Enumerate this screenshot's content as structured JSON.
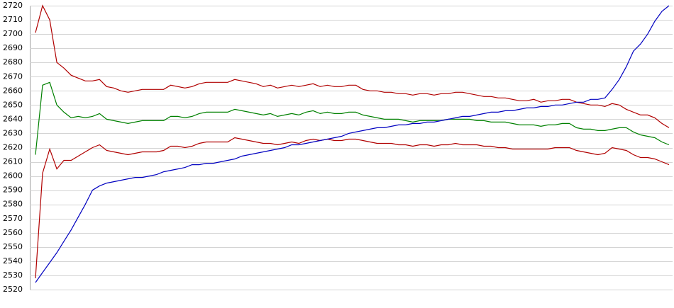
{
  "chart_data": {
    "type": "line",
    "ylim": [
      2520,
      2720
    ],
    "yticks": [
      2520,
      2530,
      2540,
      2550,
      2560,
      2570,
      2580,
      2590,
      2600,
      2610,
      2620,
      2630,
      2640,
      2650,
      2660,
      2670,
      2680,
      2690,
      2700,
      2710,
      2720
    ],
    "grid": true,
    "series": [
      {
        "color": "#b00000",
        "values": [
          2701,
          2720,
          2710,
          2680,
          2676,
          2671,
          2669,
          2667,
          2667,
          2668,
          2663,
          2662,
          2660,
          2659,
          2660,
          2661,
          2661,
          2661,
          2661,
          2664,
          2663,
          2662,
          2663,
          2665,
          2666,
          2666,
          2666,
          2666,
          2668,
          2667,
          2666,
          2665,
          2663,
          2664,
          2662,
          2663,
          2664,
          2663,
          2664,
          2665,
          2663,
          2664,
          2663,
          2663,
          2664,
          2664,
          2661,
          2660,
          2660,
          2659,
          2659,
          2658,
          2658,
          2657,
          2658,
          2658,
          2657,
          2658,
          2658,
          2659,
          2659,
          2658,
          2657,
          2656,
          2656,
          2655,
          2655,
          2654,
          2653,
          2653,
          2654,
          2652,
          2653,
          2653,
          2654,
          2654,
          2652,
          2651,
          2650,
          2650,
          2649,
          2651,
          2650,
          2647,
          2645,
          2643,
          2643,
          2641,
          2637,
          2634
        ]
      },
      {
        "color": "#008000",
        "values": [
          2615,
          2664,
          2666,
          2650,
          2645,
          2641,
          2642,
          2641,
          2642,
          2644,
          2640,
          2639,
          2638,
          2637,
          2638,
          2639,
          2639,
          2639,
          2639,
          2642,
          2642,
          2641,
          2642,
          2644,
          2645,
          2645,
          2645,
          2645,
          2647,
          2646,
          2645,
          2644,
          2643,
          2644,
          2642,
          2643,
          2644,
          2643,
          2645,
          2646,
          2644,
          2645,
          2644,
          2644,
          2645,
          2645,
          2643,
          2642,
          2641,
          2640,
          2640,
          2640,
          2639,
          2638,
          2639,
          2639,
          2639,
          2639,
          2640,
          2640,
          2640,
          2640,
          2639,
          2639,
          2638,
          2638,
          2638,
          2637,
          2636,
          2636,
          2636,
          2635,
          2636,
          2636,
          2637,
          2637,
          2634,
          2633,
          2633,
          2632,
          2632,
          2633,
          2634,
          2634,
          2631,
          2629,
          2628,
          2627,
          2624,
          2622
        ]
      },
      {
        "color": "#b00000",
        "values": [
          2528,
          2602,
          2619,
          2605,
          2611,
          2611,
          2614,
          2617,
          2620,
          2622,
          2618,
          2617,
          2616,
          2615,
          2616,
          2617,
          2617,
          2617,
          2618,
          2621,
          2621,
          2620,
          2621,
          2623,
          2624,
          2624,
          2624,
          2624,
          2627,
          2626,
          2625,
          2624,
          2623,
          2623,
          2622,
          2623,
          2624,
          2623,
          2625,
          2626,
          2625,
          2626,
          2625,
          2625,
          2626,
          2626,
          2625,
          2624,
          2623,
          2623,
          2623,
          2622,
          2622,
          2621,
          2622,
          2622,
          2621,
          2622,
          2622,
          2623,
          2622,
          2622,
          2622,
          2621,
          2621,
          2620,
          2620,
          2619,
          2619,
          2619,
          2619,
          2619,
          2619,
          2620,
          2620,
          2620,
          2618,
          2617,
          2616,
          2615,
          2616,
          2620,
          2619,
          2618,
          2615,
          2613,
          2613,
          2612,
          2610,
          2608
        ]
      },
      {
        "color": "#0000c0",
        "values": [
          2525,
          2532,
          2539,
          2546,
          2554,
          2562,
          2571,
          2580,
          2590,
          2593,
          2595,
          2596,
          2597,
          2598,
          2599,
          2599,
          2600,
          2601,
          2603,
          2604,
          2605,
          2606,
          2608,
          2608,
          2609,
          2609,
          2610,
          2611,
          2612,
          2614,
          2615,
          2616,
          2617,
          2618,
          2619,
          2620,
          2622,
          2622,
          2623,
          2624,
          2625,
          2626,
          2627,
          2628,
          2630,
          2631,
          2632,
          2633,
          2634,
          2634,
          2635,
          2636,
          2636,
          2637,
          2637,
          2638,
          2638,
          2639,
          2640,
          2641,
          2642,
          2642,
          2643,
          2644,
          2645,
          2645,
          2646,
          2646,
          2647,
          2648,
          2648,
          2649,
          2649,
          2650,
          2650,
          2651,
          2652,
          2652,
          2654,
          2654,
          2655,
          2661,
          2668,
          2677,
          2688,
          2693,
          2700,
          2709,
          2716,
          2720
        ]
      }
    ]
  }
}
